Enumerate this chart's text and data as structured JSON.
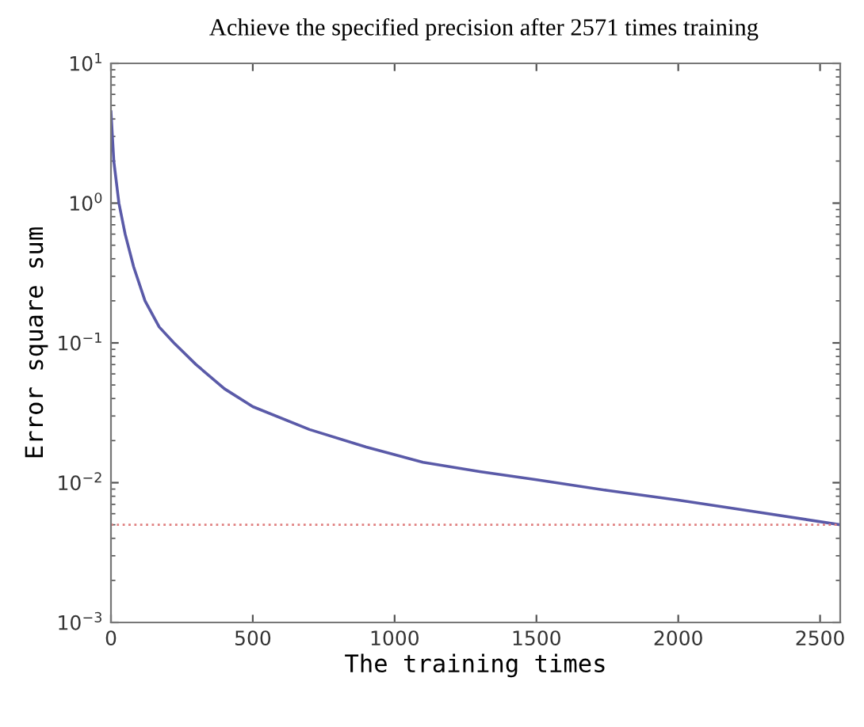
{
  "chart_data": {
    "type": "line",
    "title": "Achieve the specified precision after 2571 times training",
    "xlabel": "The training times",
    "ylabel": "Error square sum",
    "x": [
      0,
      10,
      28,
      50,
      80,
      120,
      170,
      222,
      300,
      400,
      500,
      700,
      900,
      1100,
      1300,
      1500,
      1750,
      2000,
      2250,
      2571
    ],
    "series": [
      {
        "color": "#5a5aa8",
        "values": [
          4.5,
          2.0,
          1.0,
          0.6,
          0.35,
          0.2,
          0.13,
          0.1,
          0.07,
          0.047,
          0.035,
          0.024,
          0.018,
          0.014,
          0.012,
          0.0105,
          0.0088,
          0.0075,
          0.0063,
          0.005
        ]
      }
    ],
    "log": "y",
    "xlim": [
      0,
      2571
    ],
    "xticks": [
      0,
      500,
      1000,
      1500,
      2000,
      2500
    ],
    "ylim": [
      0.001,
      10
    ],
    "yticks": [
      {
        "value": 0.001,
        "label": "10$^{−3}$"
      },
      {
        "value": 0.01,
        "label": "10$^{−2}$"
      },
      {
        "value": 0.1,
        "label": "10$^{−1}$"
      },
      {
        "value": 1,
        "label": "10$^{0}$"
      },
      {
        "value": 10,
        "label": "10$^{1}$"
      }
    ],
    "ref_lines": [
      {
        "axis": "y",
        "value": 0.005,
        "label": null,
        "color": "#e08080",
        "line_style": "dotted"
      }
    ],
    "grid": false,
    "legend": false,
    "line_style": "solid",
    "marker": "none"
  }
}
